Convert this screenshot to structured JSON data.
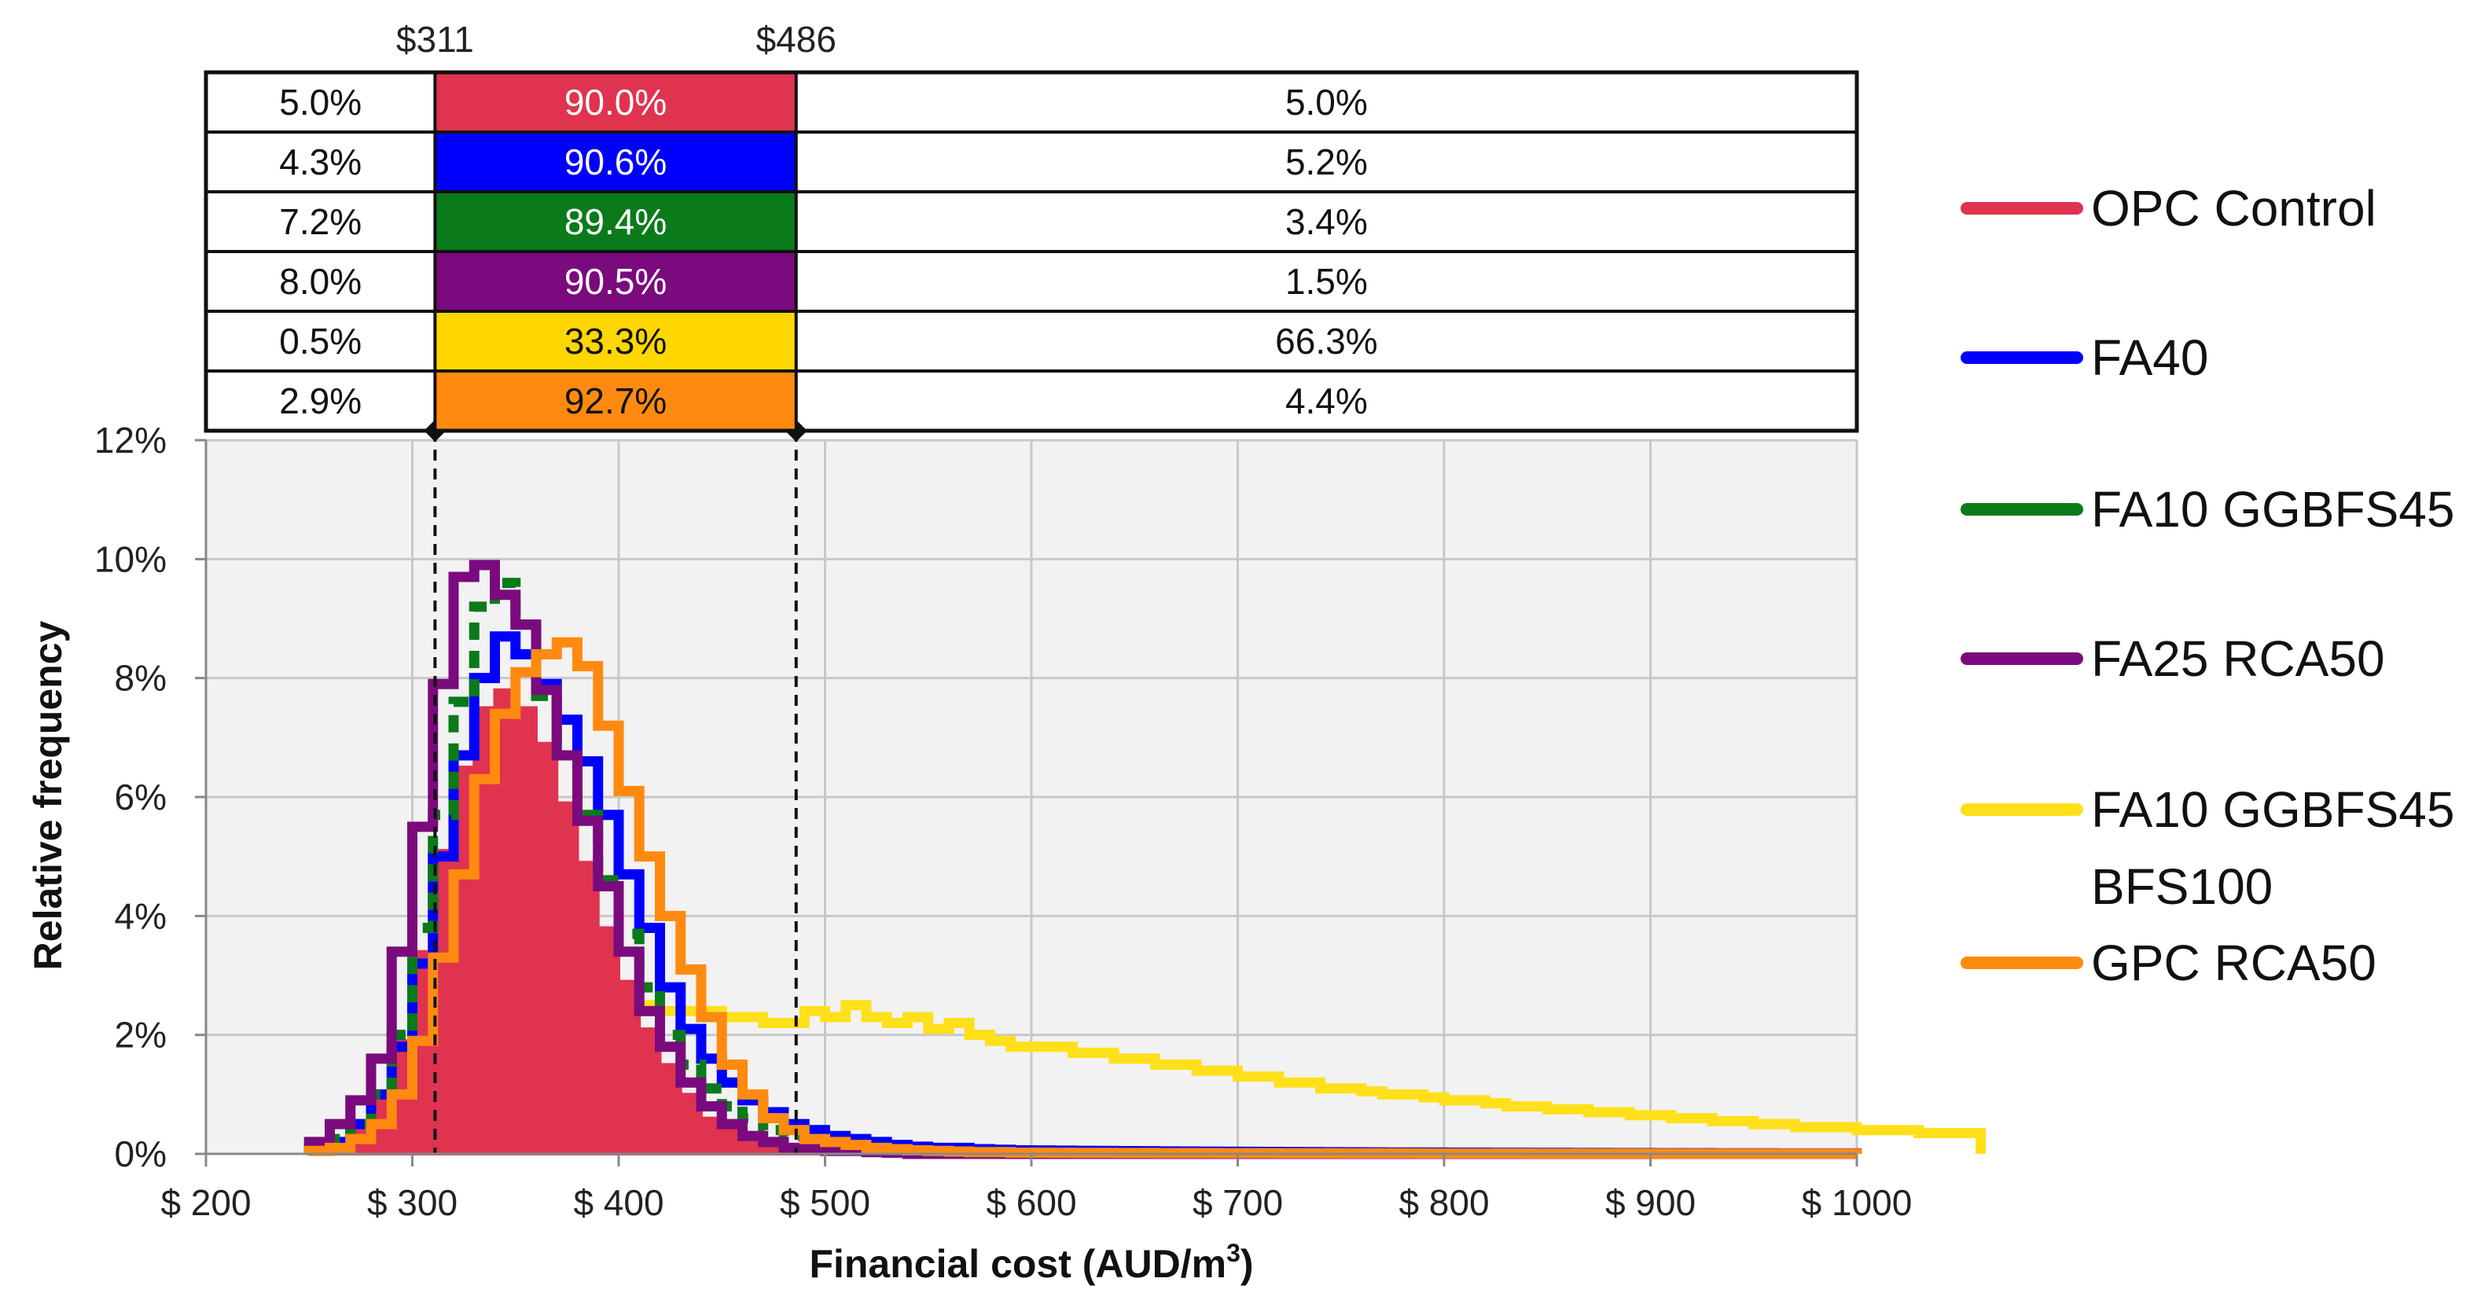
{
  "chart_data": {
    "type": "step-histogram",
    "xlabel": "Financial cost (AUD/m",
    "xlabel_sup": "3",
    "xlabel_close": ")",
    "ylabel": "Relative frequency",
    "xlim": [
      200,
      1000
    ],
    "ylim": [
      0,
      12
    ],
    "x_ticks": [
      200,
      300,
      400,
      500,
      600,
      700,
      800,
      900,
      1000
    ],
    "x_tick_labels": [
      "$ 200",
      "$ 300",
      "$ 400",
      "$ 500",
      "$ 600",
      "$ 700",
      "$ 800",
      "$ 900",
      "$ 1000"
    ],
    "y_ticks": [
      0,
      2,
      4,
      6,
      8,
      10,
      12
    ],
    "y_tick_labels": [
      "0%",
      "2%",
      "4%",
      "6%",
      "8%",
      "10%",
      "12%"
    ],
    "grid": true,
    "bin_start": 250,
    "bin_width": 10,
    "series": [
      {
        "name": "OPC Control",
        "color": "#E0334F",
        "filled": true,
        "values": [
          0.1,
          0.2,
          0.4,
          0.9,
          1.9,
          3.4,
          5.1,
          6.5,
          7.5,
          7.8,
          7.5,
          6.9,
          5.9,
          4.9,
          3.8,
          2.9,
          2.1,
          1.5,
          1.0,
          0.6,
          0.4,
          0.3,
          0.2,
          0.1,
          0.1,
          0.05,
          0.05,
          0.02,
          0.02,
          0,
          0,
          0,
          0,
          0,
          0
        ]
      },
      {
        "name": "FA40",
        "color": "#0000FF",
        "filled": false,
        "values": [
          0.1,
          0.2,
          0.5,
          1.0,
          1.8,
          3.2,
          5.0,
          6.7,
          8.0,
          8.7,
          8.4,
          7.9,
          7.3,
          6.6,
          5.7,
          4.7,
          3.8,
          2.8,
          2.1,
          1.6,
          1.2,
          0.9,
          0.7,
          0.5,
          0.4,
          0.3,
          0.25,
          0.2,
          0.15,
          0.12,
          0.1,
          0.1,
          0.08,
          0.07,
          0.06
        ]
      },
      {
        "name": "FA10 GGBFS45",
        "color": "#0A7A1A",
        "filled": false,
        "values": [
          0.1,
          0.25,
          0.5,
          1.0,
          2.0,
          3.8,
          5.7,
          7.6,
          9.2,
          9.6,
          8.9,
          7.7,
          6.7,
          5.7,
          4.6,
          3.7,
          2.8,
          2.0,
          1.5,
          1.1,
          0.8,
          0.6,
          0.4,
          0.3,
          0.2,
          0.15,
          0.1,
          0.08,
          0.05,
          0.04,
          0.03,
          0.03,
          0.02,
          0.02,
          0.02
        ]
      },
      {
        "name": "FA25 RCA50",
        "color": "#7A0A7E",
        "filled": false,
        "values": [
          0.2,
          0.5,
          0.9,
          1.6,
          3.4,
          5.5,
          7.9,
          9.7,
          9.9,
          9.4,
          8.9,
          7.8,
          6.7,
          5.6,
          4.5,
          3.4,
          2.4,
          1.8,
          1.2,
          0.8,
          0.5,
          0.3,
          0.2,
          0.1,
          0.1,
          0.05,
          0.05,
          0.03,
          0.02,
          0,
          0,
          0,
          0,
          0,
          0
        ]
      },
      {
        "name": "FA10 GGBFS45 BFS100",
        "color": "#FFE01A",
        "filled": false,
        "values": [
          0.05,
          0.1,
          0.2,
          0.3,
          0.35,
          0.5,
          0.7,
          0.9,
          1.1,
          1.4,
          1.7,
          2.0,
          2.3,
          2.5,
          2.5,
          2.4,
          2.5,
          2.4,
          2.4,
          2.4,
          2.3,
          2.3,
          2.2,
          2.2,
          2.4,
          2.3,
          2.5,
          2.3,
          2.2,
          2.3,
          2.1,
          2.2,
          2.0,
          1.9,
          1.8
        ]
      },
      {
        "name": "GPC RCA50",
        "color": "#FF8A10",
        "filled": false,
        "values": [
          0.05,
          0.1,
          0.25,
          0.5,
          1.0,
          1.9,
          3.3,
          4.7,
          6.3,
          7.4,
          8.1,
          8.4,
          8.6,
          8.2,
          7.2,
          6.1,
          5.0,
          4.0,
          3.1,
          2.3,
          1.5,
          1.0,
          0.6,
          0.4,
          0.25,
          0.2,
          0.15,
          0.1,
          0.08,
          0.06,
          0.05,
          0.04,
          0.03,
          0.03,
          0.02
        ]
      }
    ],
    "tail_series": {
      "FA10 GGBFS45 BFS100": [
        1.8,
        1.8,
        1.7,
        1.7,
        1.6,
        1.6,
        1.5,
        1.5,
        1.4,
        1.4,
        1.3,
        1.3,
        1.2,
        1.2,
        1.1,
        1.1,
        1.05,
        1.0,
        1.0,
        0.95,
        0.9,
        0.9,
        0.85,
        0.8,
        0.8,
        0.75,
        0.75,
        0.7,
        0.7,
        0.65,
        0.65,
        0.6,
        0.6,
        0.55,
        0.55,
        0.5,
        0.5,
        0.45,
        0.45,
        0.45,
        0.4,
        0.4,
        0.4,
        0.35,
        0.35,
        0.35
      ]
    },
    "bounds": {
      "lower": 311,
      "upper": 486,
      "lower_label": "$311",
      "upper_label": "$486"
    },
    "table": [
      {
        "color": "#E0334F",
        "below": "5.0%",
        "within": "90.0%",
        "above": "5.0%",
        "within_text": "white"
      },
      {
        "color": "#0000FF",
        "below": "4.3%",
        "within": "90.6%",
        "above": "5.2%",
        "within_text": "white"
      },
      {
        "color": "#0A7A1A",
        "below": "7.2%",
        "within": "89.4%",
        "above": "3.4%",
        "within_text": "white"
      },
      {
        "color": "#7A0A7E",
        "below": "8.0%",
        "within": "90.5%",
        "above": "1.5%",
        "within_text": "white"
      },
      {
        "color": "#FFD700",
        "below": "0.5%",
        "within": "33.3%",
        "above": "66.3%",
        "within_text": "dark"
      },
      {
        "color": "#FF8A10",
        "below": "2.9%",
        "within": "92.7%",
        "above": "4.4%",
        "within_text": "dark"
      }
    ],
    "legend": [
      {
        "label": "OPC Control",
        "color": "#E0334F"
      },
      {
        "label": "FA40",
        "color": "#0000FF"
      },
      {
        "label": "FA10 GGBFS45",
        "color": "#0A7A1A"
      },
      {
        "label": "FA25 RCA50",
        "color": "#7A0A7E"
      },
      {
        "label": "FA10 GGBFS45",
        "label2": "BFS100",
        "color": "#FFE01A"
      },
      {
        "label": "GPC RCA50",
        "color": "#FF8A10"
      }
    ],
    "legend_position": "right"
  }
}
